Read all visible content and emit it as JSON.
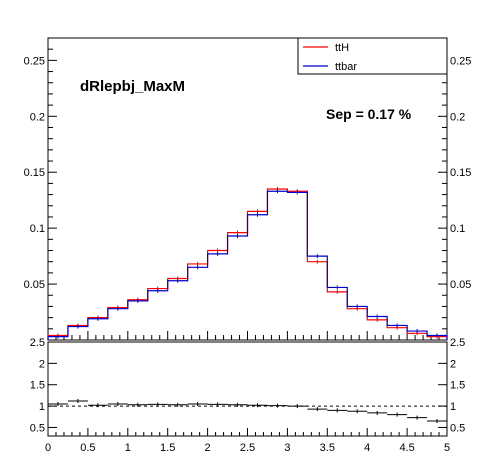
{
  "chart_data": [
    {
      "type": "histogram",
      "title": "dRlepbj_MaxM",
      "annotation": "Sep = 0.17 %",
      "x_edges": [
        0,
        0.25,
        0.5,
        0.75,
        1.0,
        1.25,
        1.5,
        1.75,
        2.0,
        2.25,
        2.5,
        2.75,
        3.0,
        3.25,
        3.5,
        3.75,
        4.0,
        4.25,
        4.5,
        4.75,
        5.0
      ],
      "xlim": [
        0,
        5
      ],
      "ylim": [
        0,
        0.27
      ],
      "x_ticks": [
        "0",
        "0.5",
        "1",
        "1.5",
        "2",
        "2.5",
        "3",
        "3.5",
        "4",
        "4.5",
        "5"
      ],
      "y_ticks": [
        "0.05",
        "0.1",
        "0.15",
        "0.2",
        "0.25"
      ],
      "legend_position": "top-right",
      "series": [
        {
          "name": "ttH",
          "color": "#ff0000",
          "values": [
            0.004,
            0.013,
            0.02,
            0.029,
            0.036,
            0.046,
            0.055,
            0.068,
            0.08,
            0.096,
            0.115,
            0.135,
            0.133,
            0.07,
            0.043,
            0.028,
            0.018,
            0.011,
            0.006,
            0.003
          ]
        },
        {
          "name": "ttbar",
          "color": "#0000cc",
          "values": [
            0.003,
            0.012,
            0.019,
            0.028,
            0.035,
            0.044,
            0.053,
            0.065,
            0.077,
            0.093,
            0.112,
            0.133,
            0.132,
            0.075,
            0.047,
            0.03,
            0.021,
            0.013,
            0.008,
            0.004
          ]
        }
      ]
    },
    {
      "type": "ratio",
      "xlim": [
        0,
        5
      ],
      "ylim": [
        0.3,
        2.5
      ],
      "x_ticks": [
        "0",
        "0.5",
        "1",
        "1.5",
        "2",
        "2.5",
        "3",
        "3.5",
        "4",
        "4.5",
        "5"
      ],
      "y_ticks": [
        "0.5",
        "1",
        "1.5",
        "2",
        "2.5"
      ],
      "reference_line": 1,
      "values": [
        1.05,
        1.12,
        1.02,
        1.05,
        1.03,
        1.04,
        1.03,
        1.05,
        1.04,
        1.03,
        1.02,
        1.01,
        1.0,
        0.93,
        0.9,
        0.88,
        0.84,
        0.8,
        0.73,
        0.65
      ]
    }
  ]
}
